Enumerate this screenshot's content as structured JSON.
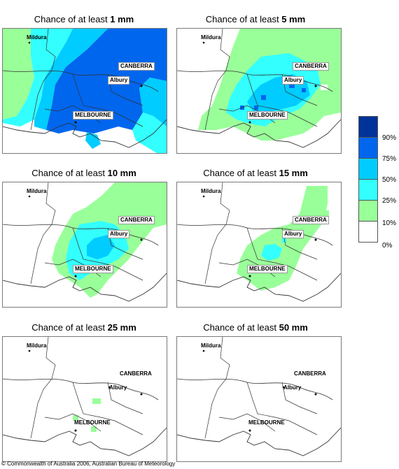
{
  "panels": [
    {
      "prefix": "Chance of at least",
      "amount": "1 mm",
      "labels": {
        "mildura": "Mildura",
        "canberra": "CANBERRA",
        "albury": "Albury",
        "melbourne": "MELBOURNE"
      }
    },
    {
      "prefix": "Chance of at least",
      "amount": "5 mm",
      "labels": {
        "mildura": "Mildura",
        "canberra": "CANBERRA",
        "albury": "Albury",
        "melbourne": "MELBOURNE"
      }
    },
    {
      "prefix": "Chance of at least",
      "amount": "10 mm",
      "labels": {
        "mildura": "Mildura",
        "canberra": "CANBERRA",
        "albury": "Albury",
        "melbourne": "MELBOURNE"
      }
    },
    {
      "prefix": "Chance of at least",
      "amount": "15 mm",
      "labels": {
        "mildura": "Mildura",
        "canberra": "CANBERRA",
        "albury": "Albury",
        "melbourne": "MELBOURNE"
      }
    },
    {
      "prefix": "Chance of at least",
      "amount": "25 mm",
      "labels": {
        "mildura": "Mildura",
        "canberra": "CANBERRA",
        "albury": "Albury",
        "melbourne": "MELBOURNE"
      }
    },
    {
      "prefix": "Chance of at least",
      "amount": "50 mm",
      "labels": {
        "mildura": "Mildura",
        "canberra": "CANBERRA",
        "albury": "Albury",
        "melbourne": "MELBOURNE"
      }
    }
  ],
  "legend": {
    "bands": [
      {
        "label": "90%",
        "color": "#003399"
      },
      {
        "label": "75%",
        "color": "#0066ee"
      },
      {
        "label": "50%",
        "color": "#00ccff"
      },
      {
        "label": "25%",
        "color": "#33ffff"
      },
      {
        "label": "10%",
        "color": "#99ff99"
      },
      {
        "label": "0%",
        "color": "#ffffff"
      }
    ]
  },
  "colors": {
    "very_dark_blue": "#003399",
    "dark_blue": "#0066ee",
    "mid_blue": "#00ccff",
    "cyan": "#33ffff",
    "light_green": "#99ff99",
    "boundary": "#555555"
  },
  "copyright": "© Commonwealth of Australia 2006, Australian Bureau of Meteorology"
}
